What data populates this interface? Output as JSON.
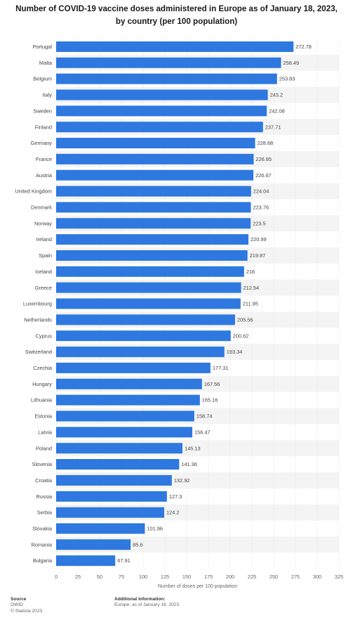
{
  "chart_data": {
    "type": "bar",
    "orientation": "horizontal",
    "title_lines": [
      "Number of COVID-19 vaccine doses administered in Europe as of January 18, 2023,",
      "by country (per 100 population)"
    ],
    "xlabel": "Number of doses per 100 population",
    "ylabel": "",
    "xlim": [
      0,
      325
    ],
    "xticks": [
      "0",
      "25",
      "50",
      "75",
      "100",
      "125",
      "150",
      "175",
      "200",
      "225",
      "250",
      "275",
      "300",
      "325"
    ],
    "grid": "vertical",
    "bar_color": "#2e78e0",
    "categories": [
      "Portugal",
      "Malta",
      "Belgium",
      "Italy",
      "Sweden",
      "Finland",
      "Germany",
      "France",
      "Austria",
      "United Kingdom",
      "Denmark",
      "Norway",
      "Ireland",
      "Spain",
      "Iceland",
      "Greece",
      "Luxembourg",
      "Netherlands",
      "Cyprus",
      "Switzerland",
      "Czechia",
      "Hungary",
      "Lithuania",
      "Estonia",
      "Latvia",
      "Poland",
      "Slovenia",
      "Croatia",
      "Russia",
      "Serbia",
      "Slovakia",
      "Romania",
      "Bulgaria"
    ],
    "values": [
      272.78,
      258.49,
      253.83,
      243.2,
      242.08,
      237.71,
      228.68,
      226.95,
      226.67,
      224.04,
      223.76,
      223.5,
      220.99,
      219.87,
      216,
      212.54,
      211.95,
      205.56,
      200.62,
      193.34,
      177.31,
      167.56,
      165.16,
      158.74,
      156.47,
      145.13,
      141.36,
      132.92,
      127.3,
      124.2,
      101.96,
      85.6,
      67.91
    ],
    "value_labels": [
      "272.78",
      "258.49",
      "253.83",
      "243.2",
      "242.08",
      "237.71",
      "228.68",
      "226.95",
      "226.67",
      "224.04",
      "223.76",
      "223.5",
      "220.99",
      "219.87",
      "216",
      "212.54",
      "211.95",
      "205.56",
      "200.62",
      "193.34",
      "177.31",
      "167.56",
      "165.16",
      "158.74",
      "156.47",
      "145.13",
      "141.36",
      "132.92",
      "127.3",
      "124.2",
      "101.96",
      "85.6",
      "67.91"
    ]
  },
  "footer": {
    "source_heading": "Source",
    "source_name": "OWID",
    "copyright": "© Statista 2023",
    "additional_heading": "Additional Information:",
    "additional_text": "Europe; as of January 18, 2023"
  }
}
